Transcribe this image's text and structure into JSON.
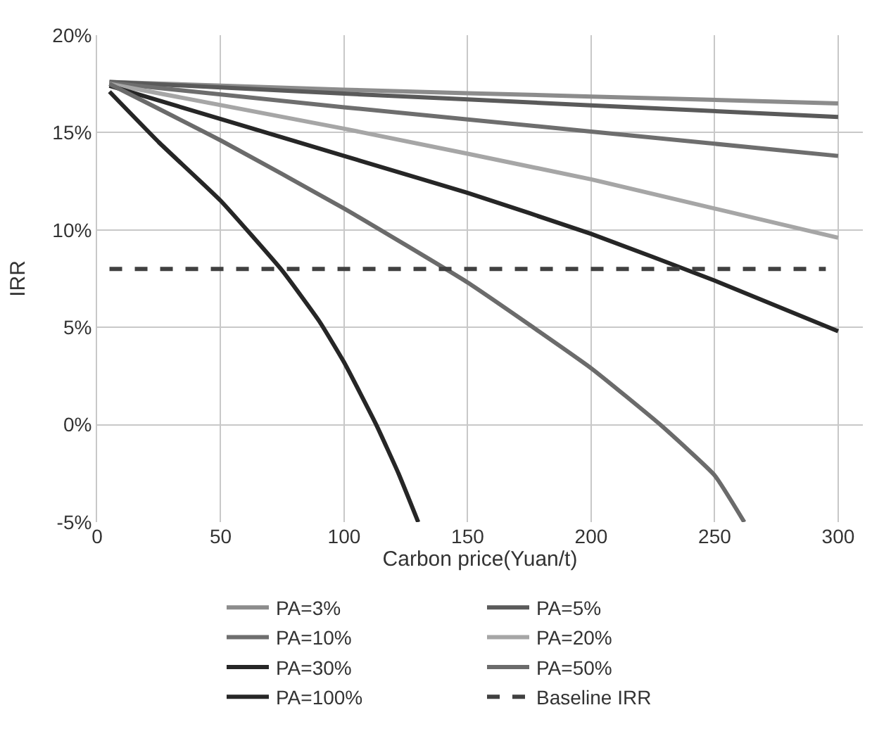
{
  "chart_data": {
    "type": "line",
    "xlabel": "Carbon price(Yuan/t)",
    "ylabel": "IRR",
    "xlim": [
      0,
      310
    ],
    "xticks": [
      0,
      50,
      100,
      150,
      200,
      250,
      300
    ],
    "ylim": [
      -5,
      20
    ],
    "yticks": [
      {
        "value": -5,
        "label": "-5%"
      },
      {
        "value": 0,
        "label": "0%"
      },
      {
        "value": 5,
        "label": "5%"
      },
      {
        "value": 10,
        "label": "10%"
      },
      {
        "value": 15,
        "label": "15%"
      },
      {
        "value": 20,
        "label": "20%"
      }
    ],
    "grid": true,
    "legend": "bottom",
    "marker": "none",
    "series": [
      {
        "name": "PA=3%",
        "color": "#8c8c8c",
        "x": [
          5,
          100,
          200,
          300
        ],
        "values": [
          17.6,
          17.2,
          16.85,
          16.5
        ]
      },
      {
        "name": "PA=5%",
        "color": "#5a5a5a",
        "x": [
          5,
          100,
          200,
          300
        ],
        "values": [
          17.6,
          17.0,
          16.4,
          15.8
        ]
      },
      {
        "name": "PA=10%",
        "color": "#6e6e6e",
        "x": [
          5,
          100,
          200,
          300
        ],
        "values": [
          17.55,
          16.3,
          15.05,
          13.8
        ]
      },
      {
        "name": "PA=20%",
        "color": "#a6a6a6",
        "x": [
          5,
          100,
          200,
          300
        ],
        "values": [
          17.5,
          15.2,
          12.6,
          9.6
        ]
      },
      {
        "name": "PA=30%",
        "color": "#262626",
        "x": [
          5,
          50,
          100,
          150,
          200,
          250,
          300
        ],
        "values": [
          17.4,
          15.7,
          13.8,
          11.9,
          9.8,
          7.4,
          4.8
        ]
      },
      {
        "name": "PA=50%",
        "color": "#6b6b6b",
        "x": [
          5,
          50,
          100,
          150,
          200,
          228,
          250,
          262
        ],
        "values": [
          17.5,
          14.6,
          11.1,
          7.3,
          2.9,
          0,
          -2.6,
          -5
        ]
      },
      {
        "name": "PA=100%",
        "color": "#262626",
        "x": [
          5,
          25,
          50,
          75,
          90,
          100,
          113,
          122,
          130
        ],
        "values": [
          17.1,
          14.5,
          11.5,
          7.9,
          5.3,
          3.2,
          0,
          -2.5,
          -5
        ]
      },
      {
        "name": "Baseline IRR",
        "color": "#404040",
        "line_style": "dashed",
        "x": [
          5,
          295
        ],
        "values": [
          8,
          8
        ]
      }
    ]
  }
}
